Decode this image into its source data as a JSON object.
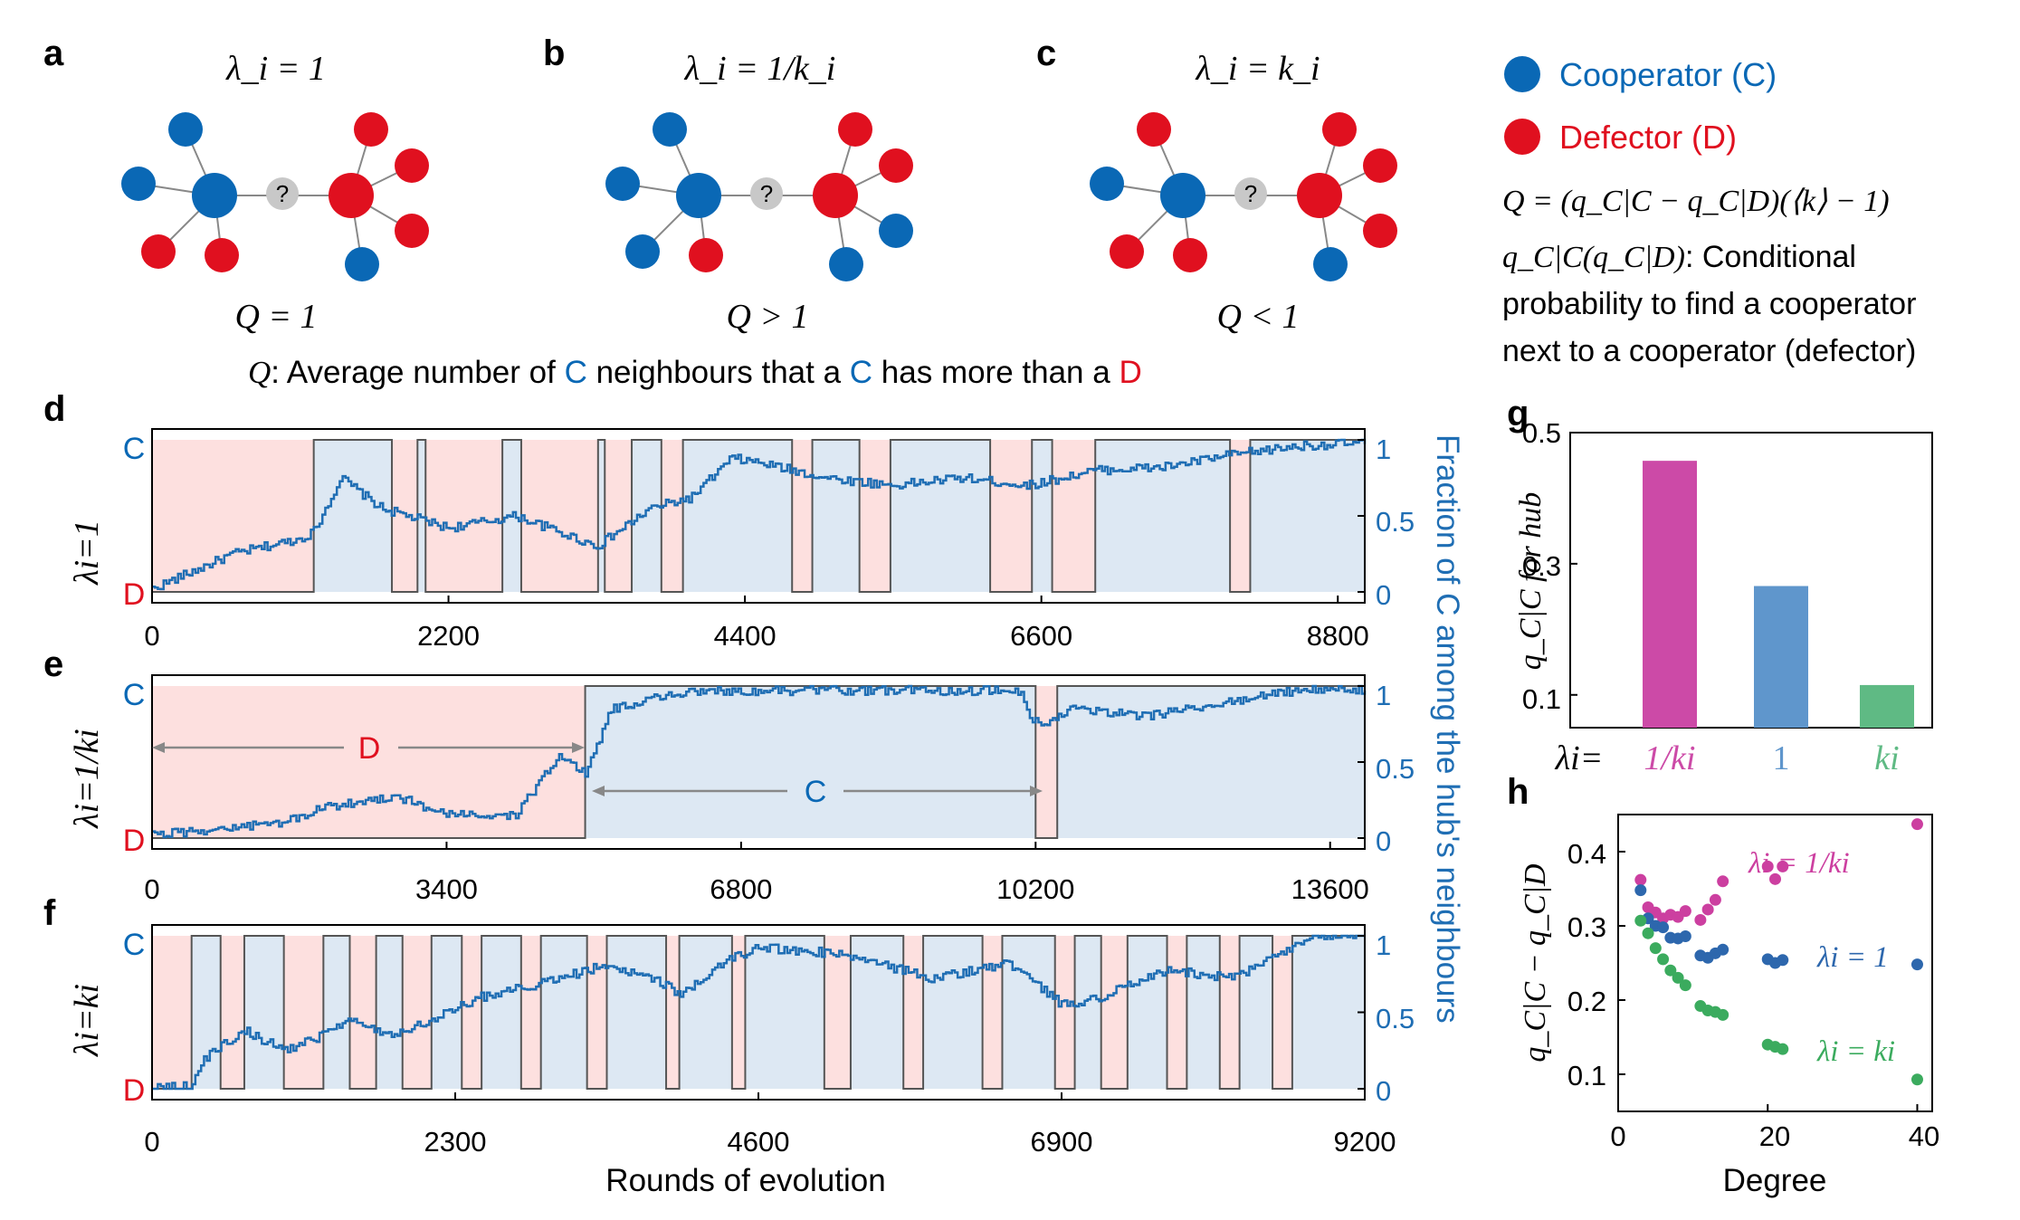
{
  "colors": {
    "cooperator": "#0a68b5",
    "defector": "#e0101f",
    "unknown": "#c8c8c8",
    "blue_line": "#1f6eb4",
    "c_shade": "#dde8f3",
    "d_shade": "#fde0df",
    "magenta": "#cc4aa7",
    "steel": "#5f96cc",
    "green": "#5fba84"
  },
  "panels_top": {
    "a": {
      "label": "a",
      "title": "λ_i = 1",
      "q": "Q = 1"
    },
    "b": {
      "label": "b",
      "title": "λ_i = 1/k_i",
      "q": "Q > 1"
    },
    "c": {
      "label": "c",
      "title": "λ_i = k_i",
      "q": "Q < 1"
    },
    "unknown_glyph": "?",
    "caption_prefix": "Q",
    "caption_parts": [
      ": Average number of ",
      "C",
      " neighbours that a ",
      "C",
      " has more than a ",
      "D"
    ]
  },
  "legend": {
    "cooperator": "Cooperator (C)",
    "defector": "Defector (D)",
    "formula": "Q = (q_C|C − q_C|D)(⟨k⟩ − 1)",
    "def_symbol": "q_C|C(q_C|D)",
    "def_lines": [
      ": Conditional",
      "probability to find a cooperator",
      "next to a cooperator (defector)"
    ]
  },
  "time_series": {
    "right_axis_label": "Fraction of C among the hub's neighbours",
    "xlabel": "Rounds of evolution",
    "top_state": "C",
    "bottom_state": "D",
    "right_ticks": [
      "1",
      "0.5",
      "0"
    ],
    "d": {
      "label": "d",
      "ylabel": "λi=1",
      "xticks": [
        "0",
        "2200",
        "4400",
        "6600",
        "8800"
      ]
    },
    "e": {
      "label": "e",
      "ylabel": "λi=1/ki",
      "xticks": [
        "0",
        "3400",
        "6800",
        "10200",
        "13600"
      ],
      "ann_d": "D",
      "ann_c": "C"
    },
    "f": {
      "label": "f",
      "ylabel": "λi=ki",
      "xticks": [
        "0",
        "2300",
        "4600",
        "6900",
        "9200"
      ]
    }
  },
  "chart_data": [
    {
      "type": "line",
      "panel": "d",
      "xlim": [
        0,
        9000
      ],
      "ylim": [
        0,
        1
      ],
      "hub_state_intervals": [
        {
          "state": "D",
          "x": [
            0,
            1200
          ]
        },
        {
          "state": "C",
          "x": [
            1200,
            1780
          ]
        },
        {
          "state": "D",
          "x": [
            1780,
            1970
          ]
        },
        {
          "state": "C",
          "x": [
            1970,
            2030
          ]
        },
        {
          "state": "D",
          "x": [
            2030,
            2600
          ]
        },
        {
          "state": "C",
          "x": [
            2600,
            2740
          ]
        },
        {
          "state": "D",
          "x": [
            2740,
            3310
          ]
        },
        {
          "state": "C",
          "x": [
            3310,
            3360
          ]
        },
        {
          "state": "D",
          "x": [
            3360,
            3560
          ]
        },
        {
          "state": "C",
          "x": [
            3560,
            3780
          ]
        },
        {
          "state": "D",
          "x": [
            3780,
            3940
          ]
        },
        {
          "state": "C",
          "x": [
            3940,
            4750
          ]
        },
        {
          "state": "D",
          "x": [
            4750,
            4900
          ]
        },
        {
          "state": "C",
          "x": [
            4900,
            5250
          ]
        },
        {
          "state": "D",
          "x": [
            5250,
            5480
          ]
        },
        {
          "state": "C",
          "x": [
            5480,
            6220
          ]
        },
        {
          "state": "D",
          "x": [
            6220,
            6530
          ]
        },
        {
          "state": "C",
          "x": [
            6530,
            6680
          ]
        },
        {
          "state": "D",
          "x": [
            6680,
            7000
          ]
        },
        {
          "state": "C",
          "x": [
            7000,
            8000
          ]
        },
        {
          "state": "D",
          "x": [
            8000,
            8150
          ]
        },
        {
          "state": "C",
          "x": [
            8150,
            9000
          ]
        }
      ],
      "fraction_keypoints": {
        "x": [
          0,
          600,
          1100,
          1200,
          1400,
          1700,
          2200,
          2700,
          3300,
          3700,
          4000,
          4300,
          4500,
          5000,
          5500,
          6000,
          6500,
          7000,
          7500,
          8000,
          8500,
          9000
        ],
        "y": [
          0.02,
          0.25,
          0.35,
          0.4,
          0.75,
          0.55,
          0.42,
          0.5,
          0.3,
          0.55,
          0.62,
          0.88,
          0.85,
          0.75,
          0.7,
          0.75,
          0.7,
          0.8,
          0.82,
          0.9,
          0.96,
          0.98
        ]
      }
    },
    {
      "type": "line",
      "panel": "e",
      "xlim": [
        0,
        14000
      ],
      "ylim": [
        0,
        1
      ],
      "hub_state_intervals": [
        {
          "state": "D",
          "x": [
            0,
            5000
          ]
        },
        {
          "state": "C",
          "x": [
            5000,
            10200
          ]
        },
        {
          "state": "D",
          "x": [
            10200,
            10450
          ]
        },
        {
          "state": "C",
          "x": [
            10450,
            14000
          ]
        }
      ],
      "fraction_keypoints": {
        "x": [
          0,
          1500,
          2000,
          2800,
          3400,
          4200,
          4700,
          5000,
          5300,
          6000,
          6800,
          8000,
          10000,
          10150,
          10300,
          10600,
          11500,
          12500,
          13200,
          14000
        ],
        "y": [
          0.02,
          0.1,
          0.2,
          0.28,
          0.15,
          0.15,
          0.55,
          0.42,
          0.85,
          0.95,
          0.97,
          0.97,
          0.97,
          0.8,
          0.72,
          0.85,
          0.8,
          0.9,
          0.97,
          0.98
        ]
      }
    },
    {
      "type": "line",
      "panel": "f",
      "xlim": [
        0,
        9200
      ],
      "ylim": [
        0,
        1
      ],
      "hub_state_intervals": [
        {
          "state": "D",
          "x": [
            0,
            300
          ]
        },
        {
          "state": "C",
          "x": [
            300,
            520
          ]
        },
        {
          "state": "D",
          "x": [
            520,
            700
          ]
        },
        {
          "state": "C",
          "x": [
            700,
            1000
          ]
        },
        {
          "state": "D",
          "x": [
            1000,
            1300
          ]
        },
        {
          "state": "C",
          "x": [
            1300,
            1500
          ]
        },
        {
          "state": "D",
          "x": [
            1500,
            1700
          ]
        },
        {
          "state": "C",
          "x": [
            1700,
            1900
          ]
        },
        {
          "state": "D",
          "x": [
            1900,
            2120
          ]
        },
        {
          "state": "C",
          "x": [
            2120,
            2350
          ]
        },
        {
          "state": "D",
          "x": [
            2350,
            2500
          ]
        },
        {
          "state": "C",
          "x": [
            2500,
            2800
          ]
        },
        {
          "state": "D",
          "x": [
            2800,
            2950
          ]
        },
        {
          "state": "C",
          "x": [
            2950,
            3300
          ]
        },
        {
          "state": "D",
          "x": [
            3300,
            3450
          ]
        },
        {
          "state": "C",
          "x": [
            3450,
            3900
          ]
        },
        {
          "state": "D",
          "x": [
            3900,
            4000
          ]
        },
        {
          "state": "C",
          "x": [
            4000,
            4400
          ]
        },
        {
          "state": "D",
          "x": [
            4400,
            4500
          ]
        },
        {
          "state": "C",
          "x": [
            4500,
            5100
          ]
        },
        {
          "state": "D",
          "x": [
            5100,
            5300
          ]
        },
        {
          "state": "C",
          "x": [
            5300,
            5700
          ]
        },
        {
          "state": "D",
          "x": [
            5700,
            5850
          ]
        },
        {
          "state": "C",
          "x": [
            5850,
            6300
          ]
        },
        {
          "state": "D",
          "x": [
            6300,
            6450
          ]
        },
        {
          "state": "C",
          "x": [
            6450,
            6850
          ]
        },
        {
          "state": "D",
          "x": [
            6850,
            7000
          ]
        },
        {
          "state": "C",
          "x": [
            7000,
            7200
          ]
        },
        {
          "state": "D",
          "x": [
            7200,
            7400
          ]
        },
        {
          "state": "C",
          "x": [
            7400,
            7700
          ]
        },
        {
          "state": "D",
          "x": [
            7700,
            7850
          ]
        },
        {
          "state": "C",
          "x": [
            7850,
            8100
          ]
        },
        {
          "state": "D",
          "x": [
            8100,
            8250
          ]
        },
        {
          "state": "C",
          "x": [
            8250,
            8500
          ]
        },
        {
          "state": "D",
          "x": [
            8500,
            8650
          ]
        },
        {
          "state": "C",
          "x": [
            8650,
            9200
          ]
        }
      ],
      "fraction_keypoints": {
        "x": [
          0,
          300,
          400,
          700,
          1000,
          1300,
          1500,
          1800,
          2100,
          2500,
          3000,
          3400,
          3800,
          4000,
          4400,
          4600,
          5000,
          5400,
          5900,
          6500,
          6900,
          7200,
          7700,
          8200,
          8600,
          8800,
          9200
        ],
        "y": [
          0.0,
          0.02,
          0.2,
          0.38,
          0.25,
          0.35,
          0.45,
          0.35,
          0.45,
          0.6,
          0.7,
          0.8,
          0.72,
          0.62,
          0.85,
          0.92,
          0.9,
          0.85,
          0.72,
          0.82,
          0.55,
          0.6,
          0.78,
          0.72,
          0.9,
          1.0,
          1.0
        ]
      }
    },
    {
      "type": "bar",
      "panel": "g",
      "title": "",
      "ylabel": "q_C|C for hub",
      "ylim": [
        0.05,
        0.5
      ],
      "yticks": [
        "0.1",
        "0.3",
        "0.5"
      ],
      "xlabel_prefix": "λi=",
      "categories": [
        "1/ki",
        "1",
        "ki"
      ],
      "values": [
        0.457,
        0.266,
        0.115
      ],
      "colors": [
        "#cc4aa7",
        "#5f96cc",
        "#5fba84"
      ]
    },
    {
      "type": "scatter",
      "panel": "h",
      "xlabel": "Degree",
      "ylabel": "q_C|C − q_C|D",
      "xlim": [
        0,
        42
      ],
      "ylim": [
        0.05,
        0.45
      ],
      "xticks": [
        "0",
        "20",
        "40"
      ],
      "yticks": [
        "0.1",
        "0.2",
        "0.3",
        "0.4"
      ],
      "series": [
        {
          "name": "λi = 1/ki",
          "color": "#cc3fa0",
          "x": [
            3,
            4,
            5,
            6,
            7,
            8,
            9,
            11,
            12,
            13,
            14,
            20,
            21,
            22,
            40
          ],
          "y": [
            0.362,
            0.325,
            0.318,
            0.31,
            0.315,
            0.312,
            0.32,
            0.308,
            0.322,
            0.335,
            0.36,
            0.38,
            0.363,
            0.38,
            0.437
          ]
        },
        {
          "name": "λi = 1",
          "color": "#2d67ad",
          "x": [
            3,
            4,
            5,
            6,
            7,
            8,
            9,
            11,
            12,
            13,
            14,
            20,
            21,
            22,
            40
          ],
          "y": [
            0.348,
            0.31,
            0.3,
            0.298,
            0.284,
            0.283,
            0.286,
            0.26,
            0.257,
            0.263,
            0.268,
            0.255,
            0.25,
            0.254,
            0.248
          ]
        },
        {
          "name": "λi = ki",
          "color": "#3bab5e",
          "x": [
            3,
            4,
            5,
            6,
            7,
            8,
            9,
            11,
            12,
            13,
            14,
            20,
            21,
            22,
            40
          ],
          "y": [
            0.307,
            0.29,
            0.27,
            0.255,
            0.24,
            0.23,
            0.22,
            0.192,
            0.186,
            0.184,
            0.18,
            0.14,
            0.137,
            0.134,
            0.093
          ]
        }
      ]
    }
  ]
}
